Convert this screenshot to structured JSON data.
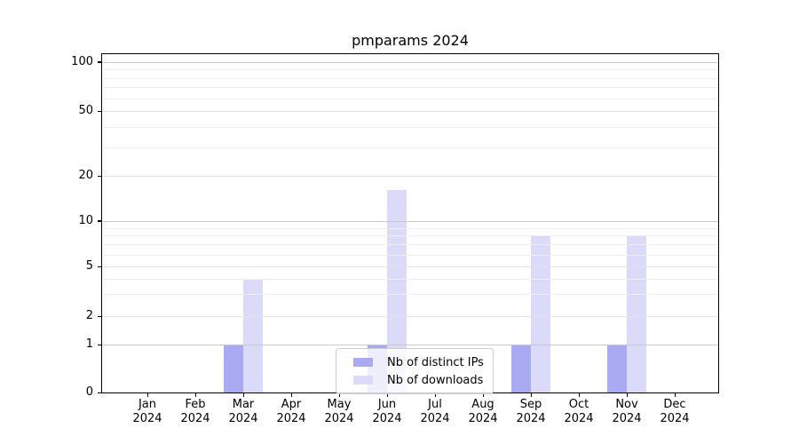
{
  "title": "pmparams 2024",
  "chart_data": {
    "type": "bar",
    "title": "pmparams 2024",
    "x_categories": [
      {
        "month": "Jan",
        "year": "2024"
      },
      {
        "month": "Feb",
        "year": "2024"
      },
      {
        "month": "Mar",
        "year": "2024"
      },
      {
        "month": "Apr",
        "year": "2024"
      },
      {
        "month": "May",
        "year": "2024"
      },
      {
        "month": "Jun",
        "year": "2024"
      },
      {
        "month": "Jul",
        "year": "2024"
      },
      {
        "month": "Aug",
        "year": "2024"
      },
      {
        "month": "Sep",
        "year": "2024"
      },
      {
        "month": "Oct",
        "year": "2024"
      },
      {
        "month": "Nov",
        "year": "2024"
      },
      {
        "month": "Dec",
        "year": "2024"
      }
    ],
    "series": [
      {
        "name": "Nb of distinct IPs",
        "color": "#aaaaf2",
        "values": [
          0,
          0,
          1,
          0,
          0,
          1,
          0,
          0,
          1,
          0,
          1,
          0
        ]
      },
      {
        "name": "Nb of downloads",
        "color": "#dbdbf9",
        "values": [
          0,
          0,
          4,
          0,
          0,
          16,
          0,
          0,
          8,
          0,
          8,
          0
        ]
      }
    ],
    "y_axis": {
      "scale": "log-like (0 baseline, log above 1)",
      "ticks": [
        0,
        1,
        2,
        5,
        10,
        20,
        50,
        100
      ],
      "minor_ticks": [
        3,
        4,
        6,
        7,
        8,
        9,
        30,
        40,
        60,
        70,
        80,
        90
      ],
      "range": [
        0,
        112
      ]
    },
    "grid": true,
    "legend_position": "lower center inside plot"
  },
  "colors": {
    "spine": "#000000",
    "grid_decade": "#c8c8c8",
    "grid_labeled": "#e2e2e2",
    "grid_minor": "#f0f0f0",
    "legend_border": "#cccccc",
    "background": "#ffffff"
  }
}
